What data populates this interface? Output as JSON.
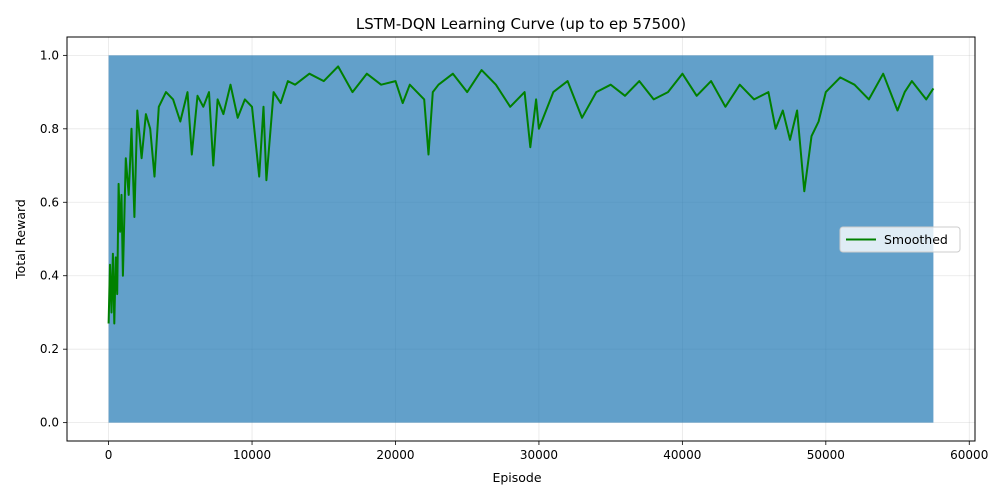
{
  "chart_data": {
    "type": "line",
    "title": "LSTM-DQN Learning Curve (up to ep 57500)",
    "xlabel": "Episode",
    "ylabel": "Total Reward",
    "xlim": [
      -2900,
      60400
    ],
    "ylim": [
      -0.05,
      1.05
    ],
    "xticks": [
      0,
      10000,
      20000,
      30000,
      40000,
      50000,
      60000
    ],
    "yticks": [
      0.0,
      0.2,
      0.4,
      0.6,
      0.8,
      1.0
    ],
    "xtick_labels": [
      "0",
      "10000",
      "20000",
      "30000",
      "40000",
      "50000",
      "60000"
    ],
    "ytick_labels": [
      "0.0",
      "0.2",
      "0.4",
      "0.6",
      "0.8",
      "1.0"
    ],
    "grid": true,
    "legend": {
      "placement": "center-right",
      "entries": [
        "Smoothed"
      ]
    },
    "series": [
      {
        "name": "raw",
        "render": "dense-band",
        "color": "#1f77b4",
        "x_range": [
          0,
          57500
        ],
        "y_range": [
          0.0,
          1.0
        ]
      },
      {
        "name": "Smoothed",
        "render": "line",
        "color": "#008000",
        "points": [
          [
            0,
            0.27
          ],
          [
            100,
            0.43
          ],
          [
            200,
            0.3
          ],
          [
            300,
            0.46
          ],
          [
            400,
            0.27
          ],
          [
            500,
            0.45
          ],
          [
            600,
            0.35
          ],
          [
            700,
            0.65
          ],
          [
            800,
            0.52
          ],
          [
            900,
            0.62
          ],
          [
            1000,
            0.4
          ],
          [
            1200,
            0.72
          ],
          [
            1400,
            0.62
          ],
          [
            1600,
            0.8
          ],
          [
            1800,
            0.56
          ],
          [
            2000,
            0.85
          ],
          [
            2300,
            0.72
          ],
          [
            2600,
            0.84
          ],
          [
            2900,
            0.8
          ],
          [
            3200,
            0.67
          ],
          [
            3500,
            0.86
          ],
          [
            4000,
            0.9
          ],
          [
            4500,
            0.88
          ],
          [
            5000,
            0.82
          ],
          [
            5500,
            0.9
          ],
          [
            5800,
            0.73
          ],
          [
            6200,
            0.89
          ],
          [
            6600,
            0.86
          ],
          [
            7000,
            0.9
          ],
          [
            7300,
            0.7
          ],
          [
            7600,
            0.88
          ],
          [
            8000,
            0.84
          ],
          [
            8500,
            0.92
          ],
          [
            9000,
            0.83
          ],
          [
            9500,
            0.88
          ],
          [
            10000,
            0.86
          ],
          [
            10500,
            0.67
          ],
          [
            10800,
            0.86
          ],
          [
            11000,
            0.66
          ],
          [
            11500,
            0.9
          ],
          [
            12000,
            0.87
          ],
          [
            12500,
            0.93
          ],
          [
            13000,
            0.92
          ],
          [
            14000,
            0.95
          ],
          [
            15000,
            0.93
          ],
          [
            16000,
            0.97
          ],
          [
            17000,
            0.9
          ],
          [
            18000,
            0.95
          ],
          [
            19000,
            0.92
          ],
          [
            20000,
            0.93
          ],
          [
            20500,
            0.87
          ],
          [
            21000,
            0.92
          ],
          [
            22000,
            0.88
          ],
          [
            22300,
            0.73
          ],
          [
            22600,
            0.9
          ],
          [
            23000,
            0.92
          ],
          [
            24000,
            0.95
          ],
          [
            25000,
            0.9
          ],
          [
            26000,
            0.96
          ],
          [
            27000,
            0.92
          ],
          [
            28000,
            0.86
          ],
          [
            29000,
            0.9
          ],
          [
            29400,
            0.75
          ],
          [
            29800,
            0.88
          ],
          [
            30000,
            0.8
          ],
          [
            31000,
            0.9
          ],
          [
            32000,
            0.93
          ],
          [
            33000,
            0.83
          ],
          [
            34000,
            0.9
          ],
          [
            35000,
            0.92
          ],
          [
            36000,
            0.89
          ],
          [
            37000,
            0.93
          ],
          [
            38000,
            0.88
          ],
          [
            39000,
            0.9
          ],
          [
            40000,
            0.95
          ],
          [
            41000,
            0.89
          ],
          [
            42000,
            0.93
          ],
          [
            43000,
            0.86
          ],
          [
            44000,
            0.92
          ],
          [
            45000,
            0.88
          ],
          [
            46000,
            0.9
          ],
          [
            46500,
            0.8
          ],
          [
            47000,
            0.85
          ],
          [
            47500,
            0.77
          ],
          [
            48000,
            0.85
          ],
          [
            48500,
            0.63
          ],
          [
            49000,
            0.78
          ],
          [
            49500,
            0.82
          ],
          [
            50000,
            0.9
          ],
          [
            51000,
            0.94
          ],
          [
            52000,
            0.92
          ],
          [
            53000,
            0.88
          ],
          [
            54000,
            0.95
          ],
          [
            55000,
            0.85
          ],
          [
            55500,
            0.9
          ],
          [
            56000,
            0.93
          ],
          [
            57000,
            0.88
          ],
          [
            57500,
            0.91
          ]
        ]
      }
    ]
  }
}
